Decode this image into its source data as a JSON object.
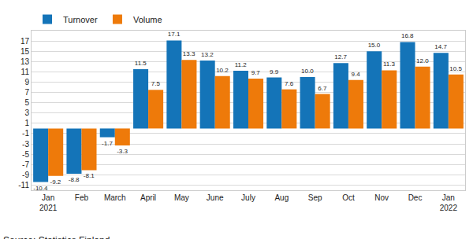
{
  "chart_data": {
    "type": "bar",
    "categories": [
      "Jan\n2021",
      "Feb",
      "March",
      "April",
      "May",
      "June",
      "July",
      "Aug",
      "Sep",
      "Oct",
      "Nov",
      "Dec",
      "Jan\n2022"
    ],
    "series": [
      {
        "name": "Turnover",
        "color": "#1474b8",
        "values": [
          -10.4,
          -8.8,
          -1.7,
          11.5,
          17.1,
          13.2,
          11.2,
          9.9,
          10.0,
          12.7,
          15.0,
          16.8,
          14.7
        ],
        "value_labels": [
          "-10.4",
          "-8.8",
          "-1.7",
          "11.5",
          "17.1",
          "13.2",
          "11.2",
          "9.9",
          "10.0",
          "12.7",
          "15.0",
          "16.8",
          "14.7"
        ]
      },
      {
        "name": "Volume",
        "color": "#ee7a0a",
        "values": [
          -9.2,
          -8.1,
          -3.3,
          7.5,
          13.3,
          10.2,
          9.7,
          7.6,
          6.7,
          9.4,
          11.3,
          12.0,
          10.5
        ],
        "value_labels": [
          "-9.2",
          "-8.1",
          "-3.3",
          "7.5",
          "13.3",
          "10.2",
          "9.7",
          "7.6",
          "6.7",
          "9.4",
          "11.3",
          "12.0",
          "10.5"
        ]
      }
    ],
    "ylim": [
      -12,
      19
    ],
    "yticks": [
      -11,
      -9,
      -7,
      -5,
      -3,
      -1,
      1,
      3,
      5,
      7,
      9,
      11,
      13,
      15,
      17
    ],
    "grid": true,
    "legend": "top left",
    "data_labels": true,
    "annotations": [
      "Source: Statistics Finland"
    ]
  }
}
